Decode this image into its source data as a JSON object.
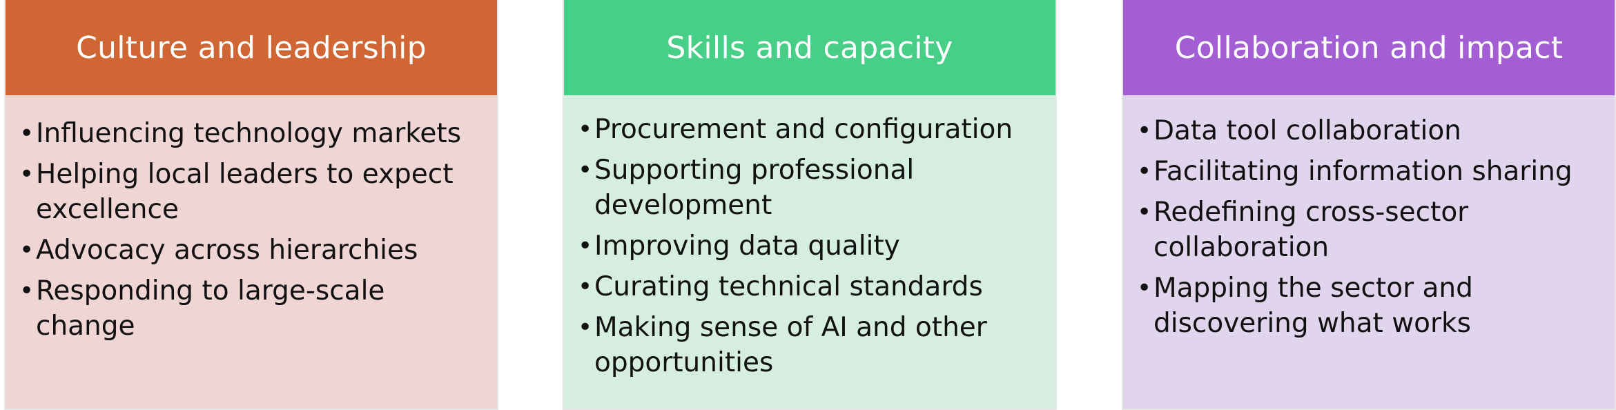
{
  "columns": [
    {
      "id": "culture",
      "title": "Culture and leadership",
      "header_color": "#D06633",
      "body_color": "#EFD5D3",
      "items": [
        "Influencing technology markets",
        "Helping local leaders to expect excellence",
        "Advocacy across hierarchies",
        "Responding to large-scale change"
      ]
    },
    {
      "id": "skills",
      "title": "Skills and capacity",
      "header_color": "#47CF88",
      "body_color": "#D5EEE0",
      "items": [
        "Procurement and configuration",
        "Supporting professional development",
        "Improving data quality",
        "Curating technical standards",
        "Making sense of AI and other opportunities"
      ]
    },
    {
      "id": "collab",
      "title": "Collaboration and impact",
      "header_color": "#A25ED2",
      "body_color": "#E1D5EE",
      "items": [
        "Data tool collaboration",
        "Facilitating information sharing",
        "Redefining cross-sector collaboration",
        "Mapping the sector and discovering what works"
      ]
    }
  ]
}
